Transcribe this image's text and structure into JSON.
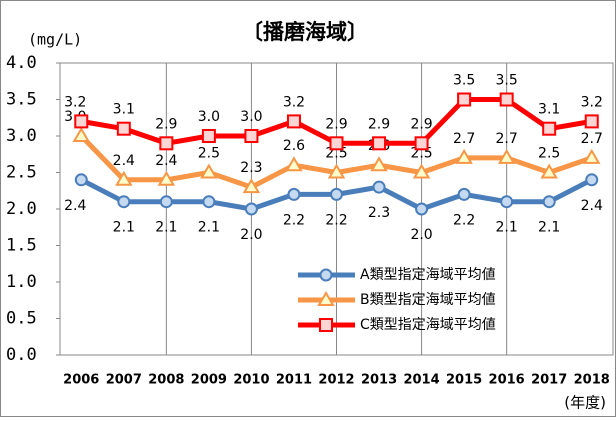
{
  "chart_data": {
    "type": "line",
    "title": "〔播磨海域〕",
    "y_label": "(mg/L)",
    "x_label": "(年度)",
    "categories": [
      "2006",
      "2007",
      "2008",
      "2009",
      "2010",
      "2011",
      "2012",
      "2013",
      "2014",
      "2015",
      "2016",
      "2017",
      "2018"
    ],
    "series": [
      {
        "name": "A類型指定海域平均値",
        "color": "#4a7ebb",
        "marker": "circle",
        "label_position": "below",
        "values": [
          2.4,
          2.1,
          2.1,
          2.1,
          2.0,
          2.2,
          2.2,
          2.3,
          2.0,
          2.2,
          2.1,
          2.1,
          2.4
        ],
        "value_labels": [
          "2.4",
          "2.1",
          "2.1",
          "2.1",
          "2.0",
          "2.2",
          "2.2",
          "2.3",
          "2.0",
          "2.2",
          "2.1",
          "2.1",
          "2.4"
        ]
      },
      {
        "name": "B類型指定海域平均値",
        "color": "#f79646",
        "marker": "triangle",
        "label_position": "above",
        "values": [
          3.0,
          2.4,
          2.4,
          2.5,
          2.3,
          2.6,
          2.5,
          2.6,
          2.5,
          2.7,
          2.7,
          2.5,
          2.7
        ],
        "value_labels": [
          "3.0",
          "2.4",
          "2.4",
          "2.5",
          "2.3",
          "2.6",
          "2.5",
          "2.6",
          "2.5",
          "2.7",
          "2.7",
          "2.5",
          "2.7"
        ]
      },
      {
        "name": "C類型指定海域平均値",
        "color": "#ff0000",
        "marker": "square",
        "label_position": "above",
        "values": [
          3.2,
          3.1,
          2.9,
          3.0,
          3.0,
          3.2,
          2.9,
          2.9,
          2.9,
          3.5,
          3.5,
          3.1,
          3.2
        ],
        "value_labels": [
          "3.2",
          "3.1",
          "2.9",
          "3.0",
          "3.0",
          "3.2",
          "2.9",
          "2.9",
          "2.9",
          "3.5",
          "3.5",
          "3.1",
          "3.2"
        ]
      }
    ],
    "ylim": [
      0,
      4
    ],
    "yticks": [
      {
        "value": 0,
        "label": "0.0"
      },
      {
        "value": 0.5,
        "label": "0.5"
      },
      {
        "value": 1,
        "label": "1.0"
      },
      {
        "value": 1.5,
        "label": "1.5"
      },
      {
        "value": 2,
        "label": "2.0"
      },
      {
        "value": 2.5,
        "label": "2.5"
      },
      {
        "value": 3,
        "label": "3.0"
      },
      {
        "value": 3.5,
        "label": "3.5"
      },
      {
        "value": 4,
        "label": "4.0"
      }
    ],
    "legend": "lower right"
  }
}
